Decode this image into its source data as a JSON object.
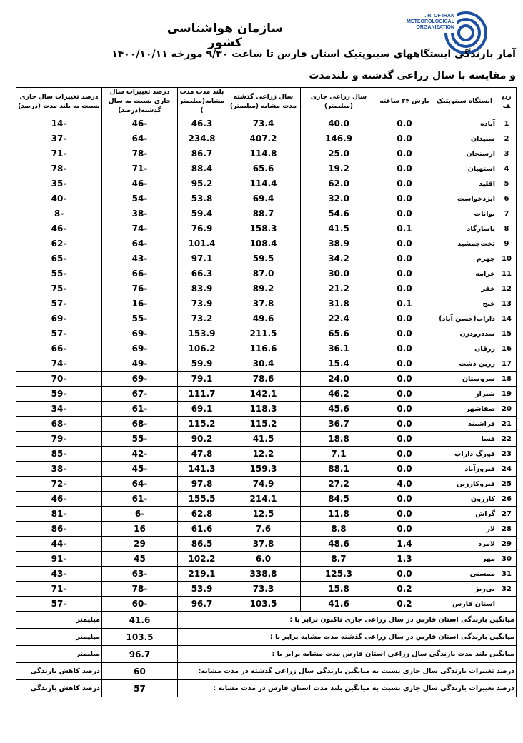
{
  "header": {
    "organization": "سازمان هواشناسی کشور",
    "logo_text": [
      "I. R. OF IRAN",
      "METEOROLOGICAL",
      "ORGANIZATION"
    ],
    "title_line1": "آمار بارندگی ایستگاههای سینوپتیک استان فارس تا ساعت ۹/۳۰ مورخه ۱۴۰۰/۱۰/۱۱",
    "title_line2": "و مقایسه با سال زراعی گذشته و بلندمدت",
    "brand_color": "#1c4fa0"
  },
  "table": {
    "columns": [
      "ردیف",
      "ایستگاه سینوپتیک",
      "بارش ۲۴ ساعته",
      "سال زراعی جاری (میلیمتر)",
      "سال زراعی گذشته مدت مشابه (میلیمتر)",
      "بلند مدت مدت مشابه(میلیمتر)",
      "درصد تغییرات سال جاری نسبت به سال گذشته(درصد)",
      "درصد تغییرات سال جاری نسبت به بلند مدت (درصد)"
    ],
    "rows": [
      [
        "1",
        "آباده",
        "0.0",
        "40.0",
        "73.4",
        "46.3",
        "-46",
        "-14"
      ],
      [
        "2",
        "سپیدان",
        "0.0",
        "146.9",
        "407.2",
        "234.8",
        "-64",
        "-37"
      ],
      [
        "3",
        "ارسنجان",
        "0.0",
        "25.0",
        "114.8",
        "86.7",
        "-78",
        "-71"
      ],
      [
        "4",
        "استهبان",
        "0.0",
        "19.2",
        "65.6",
        "88.4",
        "-71",
        "-78"
      ],
      [
        "5",
        "اقلید",
        "0.0",
        "62.0",
        "114.4",
        "95.2",
        "-46",
        "-35"
      ],
      [
        "6",
        "ایزدخواست",
        "0.0",
        "32.0",
        "69.4",
        "53.8",
        "-54",
        "-40"
      ],
      [
        "7",
        "بوانات",
        "0.0",
        "54.6",
        "88.7",
        "59.4",
        "-38",
        "-8"
      ],
      [
        "8",
        "پاسارگاد",
        "0.1",
        "41.5",
        "158.3",
        "76.9",
        "-74",
        "-46"
      ],
      [
        "9",
        "تخت‌جمشید",
        "0.0",
        "38.9",
        "108.4",
        "101.4",
        "-64",
        "-62"
      ],
      [
        "10",
        "جهرم",
        "0.0",
        "34.2",
        "59.5",
        "97.1",
        "-43",
        "-65"
      ],
      [
        "11",
        "خرامه",
        "0.0",
        "30.0",
        "87.0",
        "66.3",
        "-66",
        "-55"
      ],
      [
        "12",
        "خفر",
        "0.0",
        "21.2",
        "89.2",
        "83.9",
        "-76",
        "-75"
      ],
      [
        "13",
        "خنج",
        "0.1",
        "31.8",
        "37.8",
        "73.9",
        "-16",
        "-57"
      ],
      [
        "14",
        "داراب(حسن آباد)",
        "0.0",
        "22.4",
        "49.6",
        "73.2",
        "-55",
        "-69"
      ],
      [
        "15",
        "سددرودزن",
        "0.0",
        "65.6",
        "211.5",
        "153.9",
        "-69",
        "-57"
      ],
      [
        "16",
        "زرقان",
        "0.0",
        "36.1",
        "116.6",
        "106.2",
        "-69",
        "-66"
      ],
      [
        "17",
        "زرین دشت",
        "0.0",
        "15.4",
        "30.4",
        "59.9",
        "-49",
        "-74"
      ],
      [
        "18",
        "سروستان",
        "0.0",
        "24.0",
        "78.6",
        "79.1",
        "-69",
        "-70"
      ],
      [
        "19",
        "شیراز",
        "0.0",
        "46.2",
        "142.1",
        "111.7",
        "-67",
        "-59"
      ],
      [
        "20",
        "صفاشهر",
        "0.0",
        "45.6",
        "118.3",
        "69.1",
        "-61",
        "-34"
      ],
      [
        "21",
        "فراشبند",
        "0.0",
        "36.7",
        "115.2",
        "115.2",
        "-68",
        "-68"
      ],
      [
        "22",
        "فسا",
        "0.0",
        "18.8",
        "41.5",
        "90.2",
        "-55",
        "-79"
      ],
      [
        "23",
        "فورگ داراب",
        "0.0",
        "7.1",
        "12.2",
        "47.8",
        "-42",
        "-85"
      ],
      [
        "24",
        "فیروزآباد",
        "0.0",
        "88.1",
        "159.3",
        "141.3",
        "-45",
        "-38"
      ],
      [
        "25",
        "قیروکارزین",
        "4.0",
        "27.2",
        "74.9",
        "97.8",
        "-64",
        "-72"
      ],
      [
        "26",
        "کازرون",
        "0.0",
        "84.5",
        "214.1",
        "155.5",
        "-61",
        "-46"
      ],
      [
        "27",
        "گراش",
        "0.0",
        "11.8",
        "12.5",
        "62.8",
        "-6",
        "-81"
      ],
      [
        "28",
        "لار",
        "0.0",
        "8.8",
        "7.6",
        "61.6",
        "16",
        "-86"
      ],
      [
        "29",
        "لامرد",
        "1.4",
        "48.6",
        "37.8",
        "86.5",
        "29",
        "-44"
      ],
      [
        "30",
        "مهر",
        "1.3",
        "8.7",
        "6.0",
        "102.2",
        "45",
        "-91"
      ],
      [
        "31",
        "ممسنی",
        "0.0",
        "125.3",
        "338.8",
        "219.1",
        "-63",
        "-43"
      ],
      [
        "32",
        "نی‌ریز",
        "0.2",
        "15.8",
        "73.3",
        "53.9",
        "-78",
        "-71"
      ],
      [
        "",
        "استان فارس",
        "0.2",
        "41.6",
        "103.5",
        "96.7",
        "-60",
        "-57"
      ]
    ]
  },
  "summary": [
    {
      "text": "میانگین بارندگی استان فارس در سال زراعی جاری تاکنون برابر با :",
      "value": "41.6",
      "unit": "میلیمتر"
    },
    {
      "text": "میانگین بارندگی استان فارس در سال زراعی گذشته مدت مشابه برابر با :",
      "value": "103.5",
      "unit": "میلیمتر"
    },
    {
      "text": "میانگین بلند مدت بارندگی سال زراعی استان فارس مدت مشابه برابر با :",
      "value": "96.7",
      "unit": "میلیمتر"
    },
    {
      "text": "درصد تغییرات بارندگی سال جاری نسبت به میانگین بارندگی سال زراعی گذشته در مدت مشابه:",
      "value": "60",
      "unit": "درصد کاهش بارندگی"
    },
    {
      "text": "درصد تغییرات بارندگی سال جاری نسبت به میانگین بلند مدت استان فارس در مدت مشابه :",
      "value": "57",
      "unit": "درصد کاهش بارندگی"
    }
  ]
}
